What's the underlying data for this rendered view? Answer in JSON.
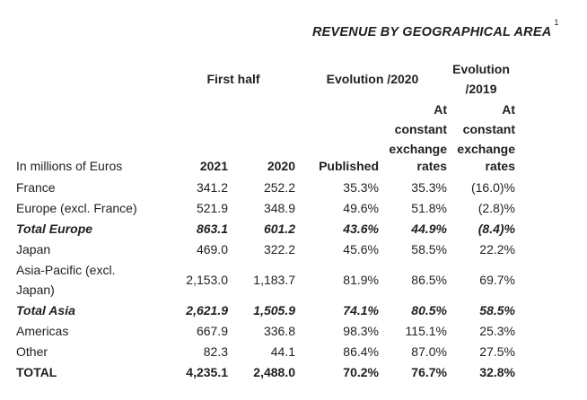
{
  "title": "REVENUE BY GEOGRAPHICAL AREA",
  "title_note": "1",
  "headers": {
    "first_half": "First half",
    "evolution_2020": "Evolution /2020",
    "evolution_2019_line1": "Evolution",
    "evolution_2019_line2": "/2019",
    "at": "At",
    "constant": "constant",
    "exchange": "exchange",
    "unit": "In millions of Euros",
    "col_2021": "2021",
    "col_2020": "2020",
    "published": "Published",
    "rates": "rates"
  },
  "rows": [
    {
      "label": "France",
      "v2021": "341.2",
      "v2020": "252.2",
      "published": "35.3%",
      "const2020": "35.3%",
      "const2019": "(16.0)%"
    },
    {
      "label": "Europe (excl. France)",
      "v2021": "521.9",
      "v2020": "348.9",
      "published": "49.6%",
      "const2020": "51.8%",
      "const2019": "(2.8)%"
    },
    {
      "label": "Total Europe",
      "v2021": "863.1",
      "v2020": "601.2",
      "published": "43.6%",
      "const2020": "44.9%",
      "const2019": "(8.4)%"
    },
    {
      "label": "Japan",
      "v2021": "469.0",
      "v2020": "322.2",
      "published": "45.6%",
      "const2020": "58.5%",
      "const2019": "22.2%"
    },
    {
      "label_line1": "Asia-Pacific (excl.",
      "label_line2": "Japan)",
      "v2021": "2,153.0",
      "v2020": "1,183.7",
      "published": "81.9%",
      "const2020": "86.5%",
      "const2019": "69.7%"
    },
    {
      "label": "Total Asia",
      "v2021": "2,621.9",
      "v2020": "1,505.9",
      "published": "74.1%",
      "const2020": "80.5%",
      "const2019": "58.5%"
    },
    {
      "label": "Americas",
      "v2021": "667.9",
      "v2020": "336.8",
      "published": "98.3%",
      "const2020": "115.1%",
      "const2019": "25.3%"
    },
    {
      "label": "Other",
      "v2021": "82.3",
      "v2020": "44.1",
      "published": "86.4%",
      "const2020": "87.0%",
      "const2019": "27.5%"
    },
    {
      "label": "TOTAL",
      "v2021": "4,235.1",
      "v2020": "2,488.0",
      "published": "70.2%",
      "const2020": "76.7%",
      "const2019": "32.8%"
    }
  ]
}
